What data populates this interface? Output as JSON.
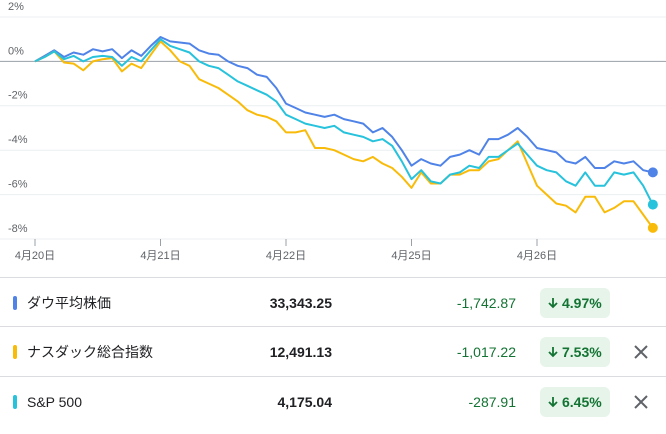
{
  "chart_data": {
    "type": "line",
    "categories": [
      "4月20日",
      null,
      null,
      null,
      null,
      null,
      null,
      null,
      null,
      null,
      null,
      null,
      null,
      "4月21日",
      null,
      null,
      null,
      null,
      null,
      null,
      null,
      null,
      null,
      null,
      null,
      null,
      "4月22日",
      null,
      null,
      null,
      null,
      null,
      null,
      null,
      null,
      null,
      null,
      null,
      null,
      "4月25日",
      null,
      null,
      null,
      null,
      null,
      null,
      null,
      null,
      null,
      null,
      null,
      null,
      "4月26日",
      null,
      null,
      null,
      null,
      null,
      null,
      null,
      null,
      null,
      null,
      null,
      null
    ],
    "series": [
      {
        "name": "ダウ平均株価",
        "color": "#4f83e8",
        "values": [
          0,
          0.25,
          0.5,
          0.2,
          0.4,
          0.3,
          0.55,
          0.45,
          0.55,
          0.15,
          0.5,
          0.25,
          0.7,
          1.1,
          0.9,
          0.85,
          0.8,
          0.5,
          0.35,
          0.3,
          0.0,
          -0.2,
          -0.3,
          -0.6,
          -0.7,
          -1.2,
          -1.9,
          -2.1,
          -2.3,
          -2.4,
          -2.5,
          -2.4,
          -2.6,
          -2.7,
          -2.8,
          -3.2,
          -3.0,
          -3.4,
          -4.0,
          -4.7,
          -4.4,
          -4.6,
          -4.7,
          -4.3,
          -4.2,
          -4.0,
          -4.2,
          -3.5,
          -3.5,
          -3.3,
          -3.0,
          -3.4,
          -3.9,
          -4.0,
          -4.1,
          -4.5,
          -4.6,
          -4.3,
          -4.8,
          -4.8,
          -4.5,
          -4.6,
          -4.5,
          -4.9,
          -5.0
        ]
      },
      {
        "name": "ナスダック総合指数",
        "color": "#f9bb0a",
        "values": [
          0,
          0.2,
          0.45,
          -0.05,
          -0.1,
          -0.4,
          0.0,
          0.1,
          0.15,
          -0.45,
          -0.1,
          -0.3,
          0.3,
          0.9,
          0.5,
          0.0,
          -0.2,
          -0.8,
          -1.0,
          -1.2,
          -1.5,
          -1.8,
          -2.2,
          -2.4,
          -2.5,
          -2.7,
          -3.2,
          -3.2,
          -3.1,
          -3.9,
          -3.9,
          -4.0,
          -4.2,
          -4.4,
          -4.5,
          -4.3,
          -4.6,
          -4.8,
          -5.2,
          -5.7,
          -5.0,
          -5.5,
          -5.5,
          -5.1,
          -5.1,
          -4.9,
          -4.9,
          -4.5,
          -4.4,
          -4.0,
          -3.6,
          -4.6,
          -5.6,
          -6.0,
          -6.4,
          -6.5,
          -6.8,
          -6.1,
          -6.1,
          -6.8,
          -6.6,
          -6.3,
          -6.3,
          -6.9,
          -7.5
        ]
      },
      {
        "name": "S&P 500",
        "color": "#27c2dc",
        "values": [
          0,
          0.2,
          0.45,
          0.1,
          0.25,
          0.0,
          0.2,
          0.25,
          0.2,
          -0.2,
          0.2,
          0.0,
          0.5,
          1.0,
          0.7,
          0.55,
          0.4,
          0.0,
          -0.2,
          -0.3,
          -0.6,
          -0.9,
          -1.1,
          -1.3,
          -1.5,
          -1.8,
          -2.4,
          -2.6,
          -2.8,
          -2.9,
          -3.0,
          -2.9,
          -3.2,
          -3.3,
          -3.4,
          -3.6,
          -3.5,
          -3.8,
          -4.5,
          -5.3,
          -4.9,
          -5.4,
          -5.5,
          -5.1,
          -5.0,
          -4.7,
          -4.8,
          -4.3,
          -4.3,
          -4.0,
          -3.7,
          -4.2,
          -4.7,
          -4.9,
          -5.0,
          -5.4,
          -5.6,
          -5.0,
          -5.6,
          -5.6,
          -5.0,
          -5.1,
          -5.0,
          -5.6,
          -6.45
        ]
      }
    ],
    "ylim": [
      -8,
      2
    ],
    "yticks": [
      {
        "value": 2,
        "label": "2%"
      },
      {
        "value": 0,
        "label": "0%"
      },
      {
        "value": -2,
        "label": "-2%"
      },
      {
        "value": -4,
        "label": "-4%"
      },
      {
        "value": -6,
        "label": "-6%"
      },
      {
        "value": -8,
        "label": "-8%"
      }
    ],
    "grid": true
  },
  "table": {
    "rows": [
      {
        "name": "ダウ平均株価",
        "price": "33,343.25",
        "change": "-1,742.87",
        "percent": "4.97%"
      },
      {
        "name": "ナスダック総合指数",
        "price": "12,491.13",
        "change": "-1,017.22",
        "percent": "7.53%"
      },
      {
        "name": "S&P 500",
        "price": "4,175.04",
        "change": "-287.91",
        "percent": "6.45%"
      }
    ]
  }
}
